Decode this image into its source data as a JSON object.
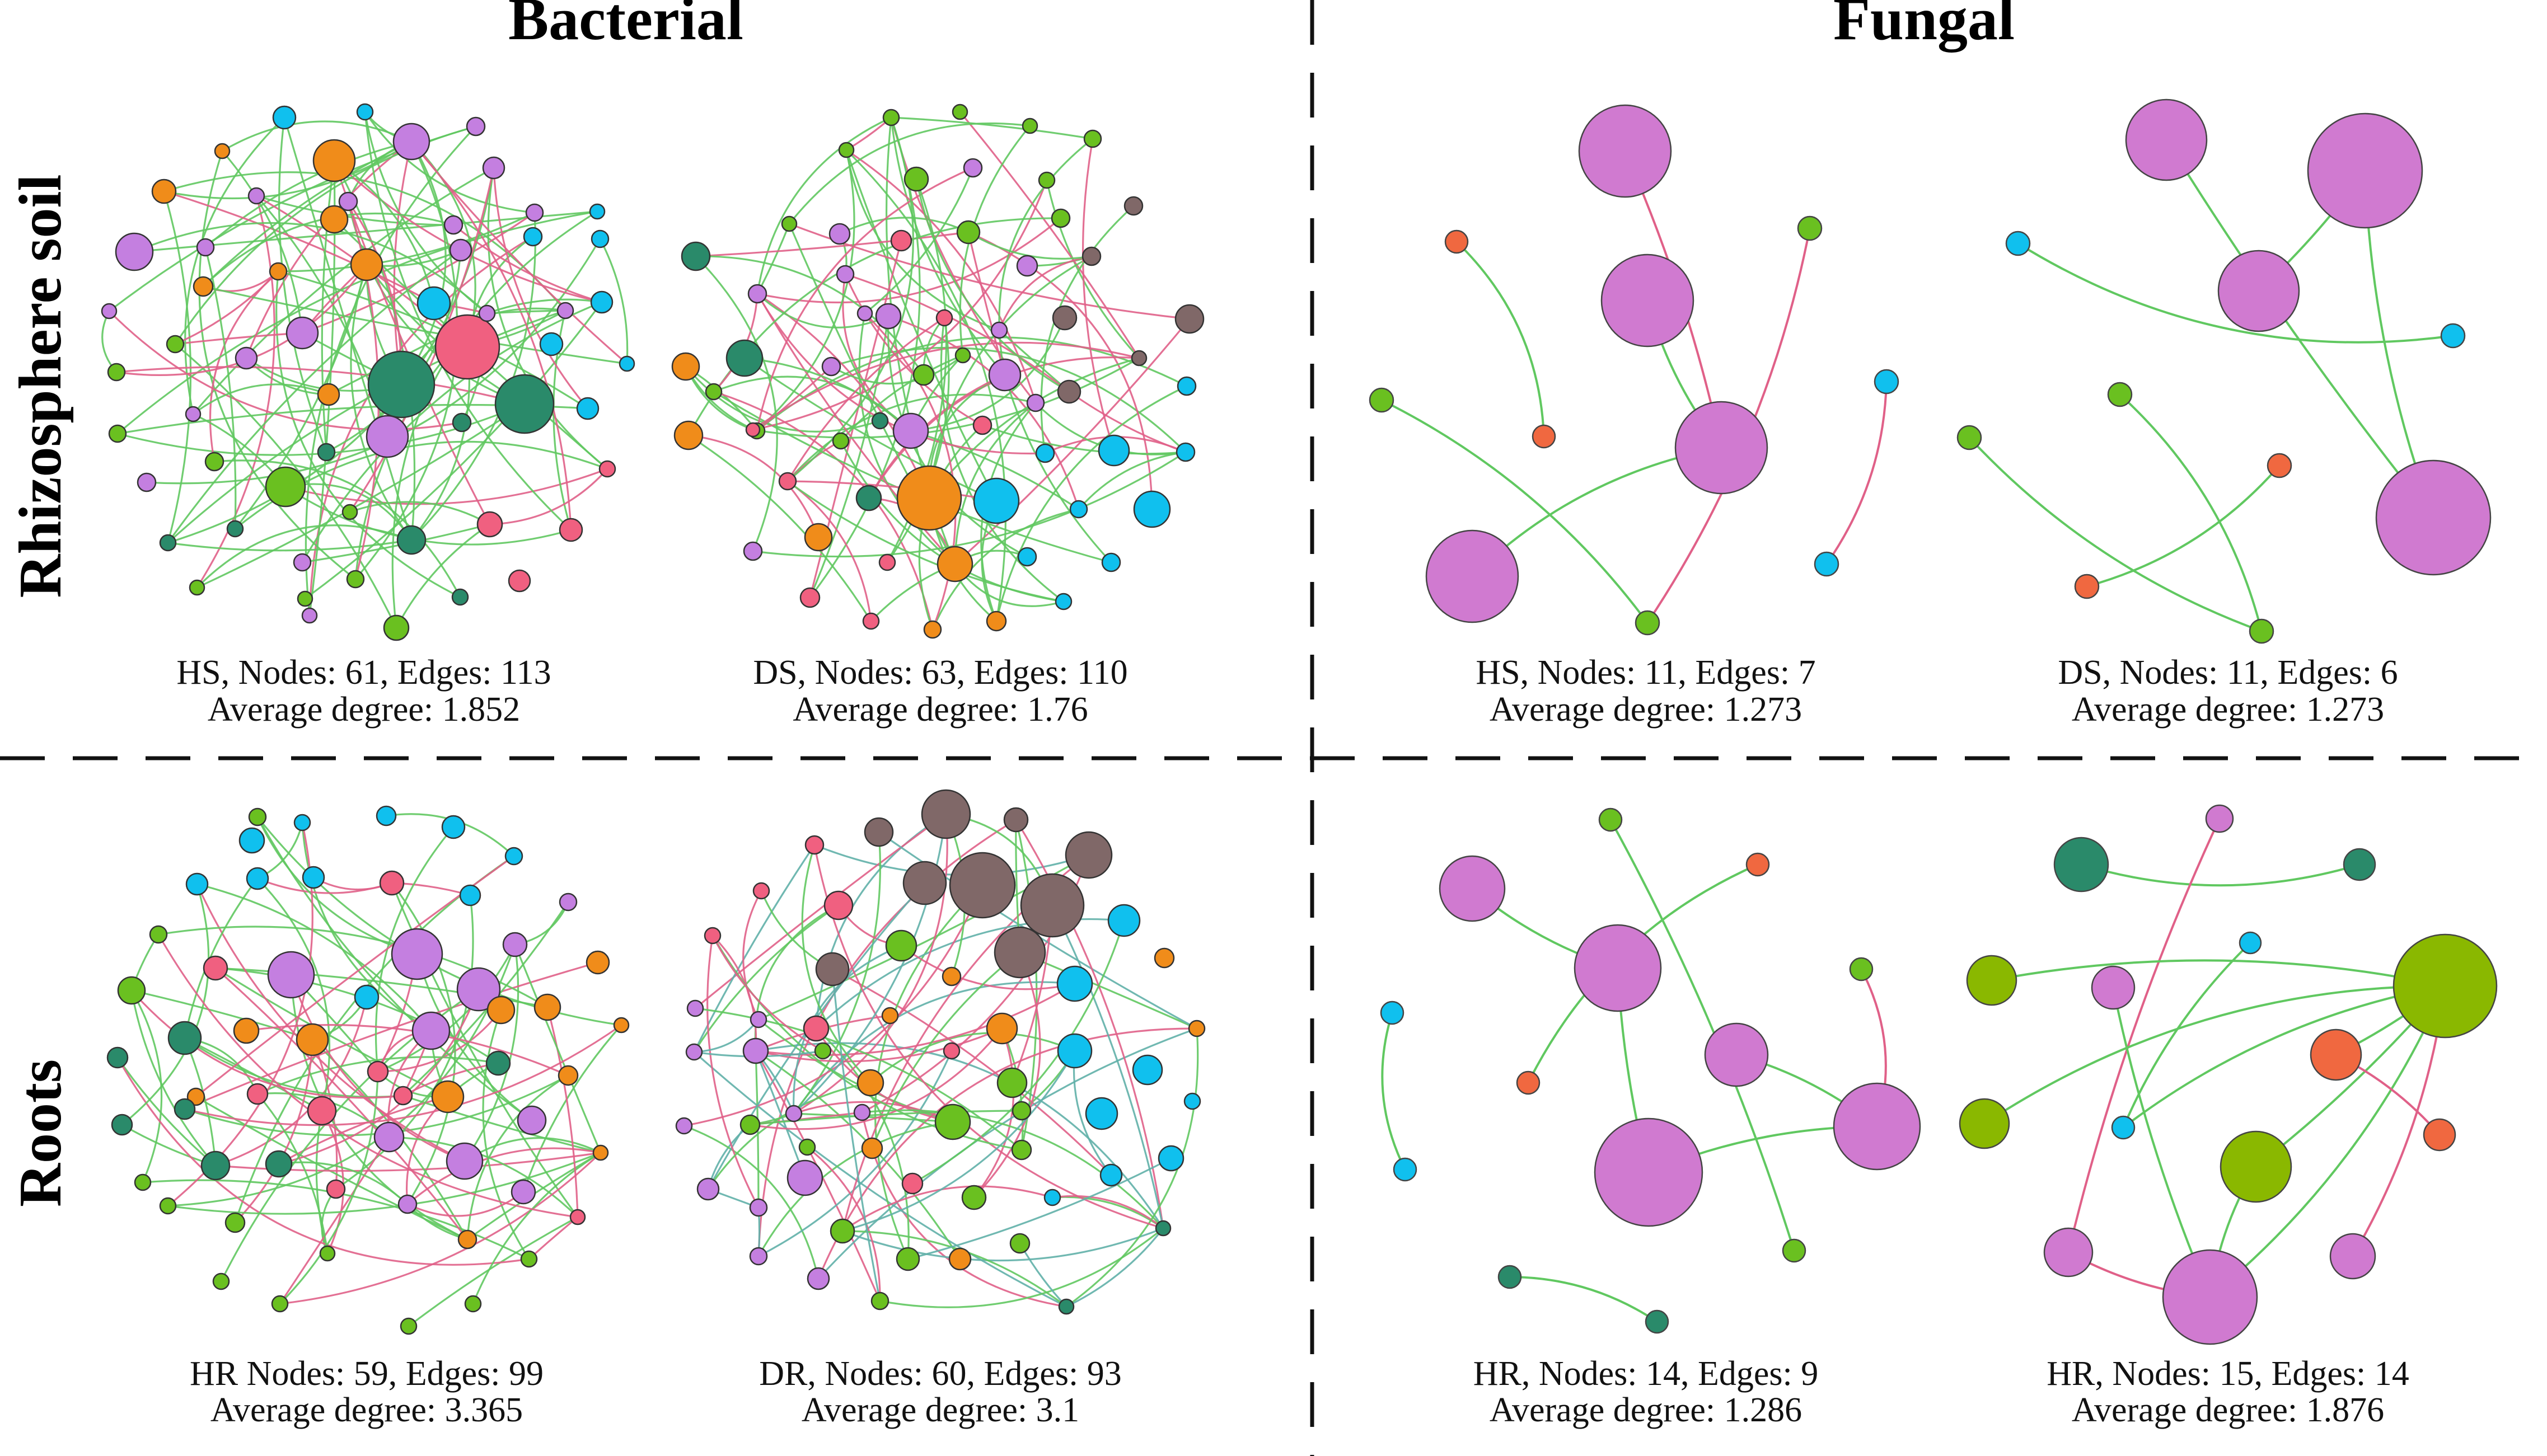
{
  "columns": {
    "left": "Bacterial",
    "right": "Fungal"
  },
  "rows": {
    "top": "Rhizosphere soil",
    "bottom": "Roots"
  },
  "colors": {
    "purple": "#c47fe0",
    "orchid": "#d07ad0",
    "orange": "#f08c1a",
    "pink": "#f06080",
    "teal": "#2a8a6a",
    "green": "#6ac020",
    "olive": "#8ab800",
    "cyan": "#10c0ee",
    "brown": "#806868",
    "red_orange": "#f06840",
    "edge_green": "#60c860",
    "edge_pink": "#e06088",
    "edge_teal": "#60b0a8"
  },
  "panels": [
    {
      "id": "hs-bacterial",
      "caption": [
        "HS, Nodes: 61, Edges: 113",
        "Average degree: 1.852"
      ],
      "nodes": 61,
      "edges": 113,
      "average_degree": 1.852
    },
    {
      "id": "ds-bacterial",
      "caption": [
        "DS, Nodes: 63, Edges: 110",
        "Average degree: 1.76"
      ],
      "nodes": 63,
      "edges": 110,
      "average_degree": 1.76
    },
    {
      "id": "hs-fungal",
      "caption": [
        "HS, Nodes: 11, Edges: 7",
        "Average degree: 1.273"
      ],
      "nodes": 11,
      "edges": 7,
      "average_degree": 1.273
    },
    {
      "id": "ds-fungal",
      "caption": [
        "DS, Nodes: 11, Edges: 6",
        "Average degree: 1.273"
      ],
      "nodes": 11,
      "edges": 6,
      "average_degree": 1.273
    },
    {
      "id": "hr-bacterial",
      "caption": [
        "HR Nodes: 59, Edges: 99",
        "Average degree: 3.365"
      ],
      "nodes": 59,
      "edges": 99,
      "average_degree": 3.365
    },
    {
      "id": "dr-bacterial",
      "caption": [
        "DR, Nodes: 60, Edges: 93",
        "Average degree: 3.1"
      ],
      "nodes": 60,
      "edges": 93,
      "average_degree": 3.1
    },
    {
      "id": "hr-fungal",
      "caption": [
        "HR, Nodes: 14, Edges: 9",
        "Average degree: 1.286"
      ],
      "nodes": 14,
      "edges": 9,
      "average_degree": 1.286
    },
    {
      "id": "hr-fungal-2",
      "caption": [
        "HR, Nodes: 15, Edges: 14",
        "Average degree: 1.876"
      ],
      "nodes": 15,
      "edges": 14,
      "average_degree": 1.876
    }
  ]
}
